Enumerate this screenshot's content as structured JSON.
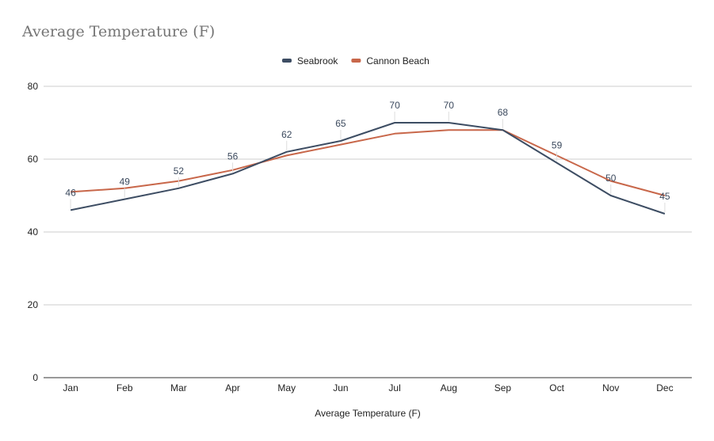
{
  "chart_data": {
    "type": "line",
    "title": "Average Temperature (F)",
    "xlabel": "Average Temperature (F)",
    "ylabel": "",
    "categories": [
      "Jan",
      "Feb",
      "Mar",
      "Apr",
      "May",
      "Jun",
      "Jul",
      "Aug",
      "Sep",
      "Oct",
      "Nov",
      "Dec"
    ],
    "ylim": [
      0,
      80
    ],
    "yticks": [
      0,
      20,
      40,
      60,
      80
    ],
    "grid": true,
    "legend_position": "top-center",
    "series": [
      {
        "name": "Seabrook",
        "color": "#3d4d63",
        "values": [
          46,
          49,
          52,
          56,
          62,
          65,
          70,
          70,
          68,
          59,
          50,
          45
        ],
        "show_labels": true
      },
      {
        "name": "Cannon Beach",
        "color": "#c8674a",
        "values": [
          51,
          52,
          54,
          57,
          61,
          64,
          67,
          68,
          68,
          61,
          54,
          50
        ],
        "show_labels": false
      }
    ]
  }
}
